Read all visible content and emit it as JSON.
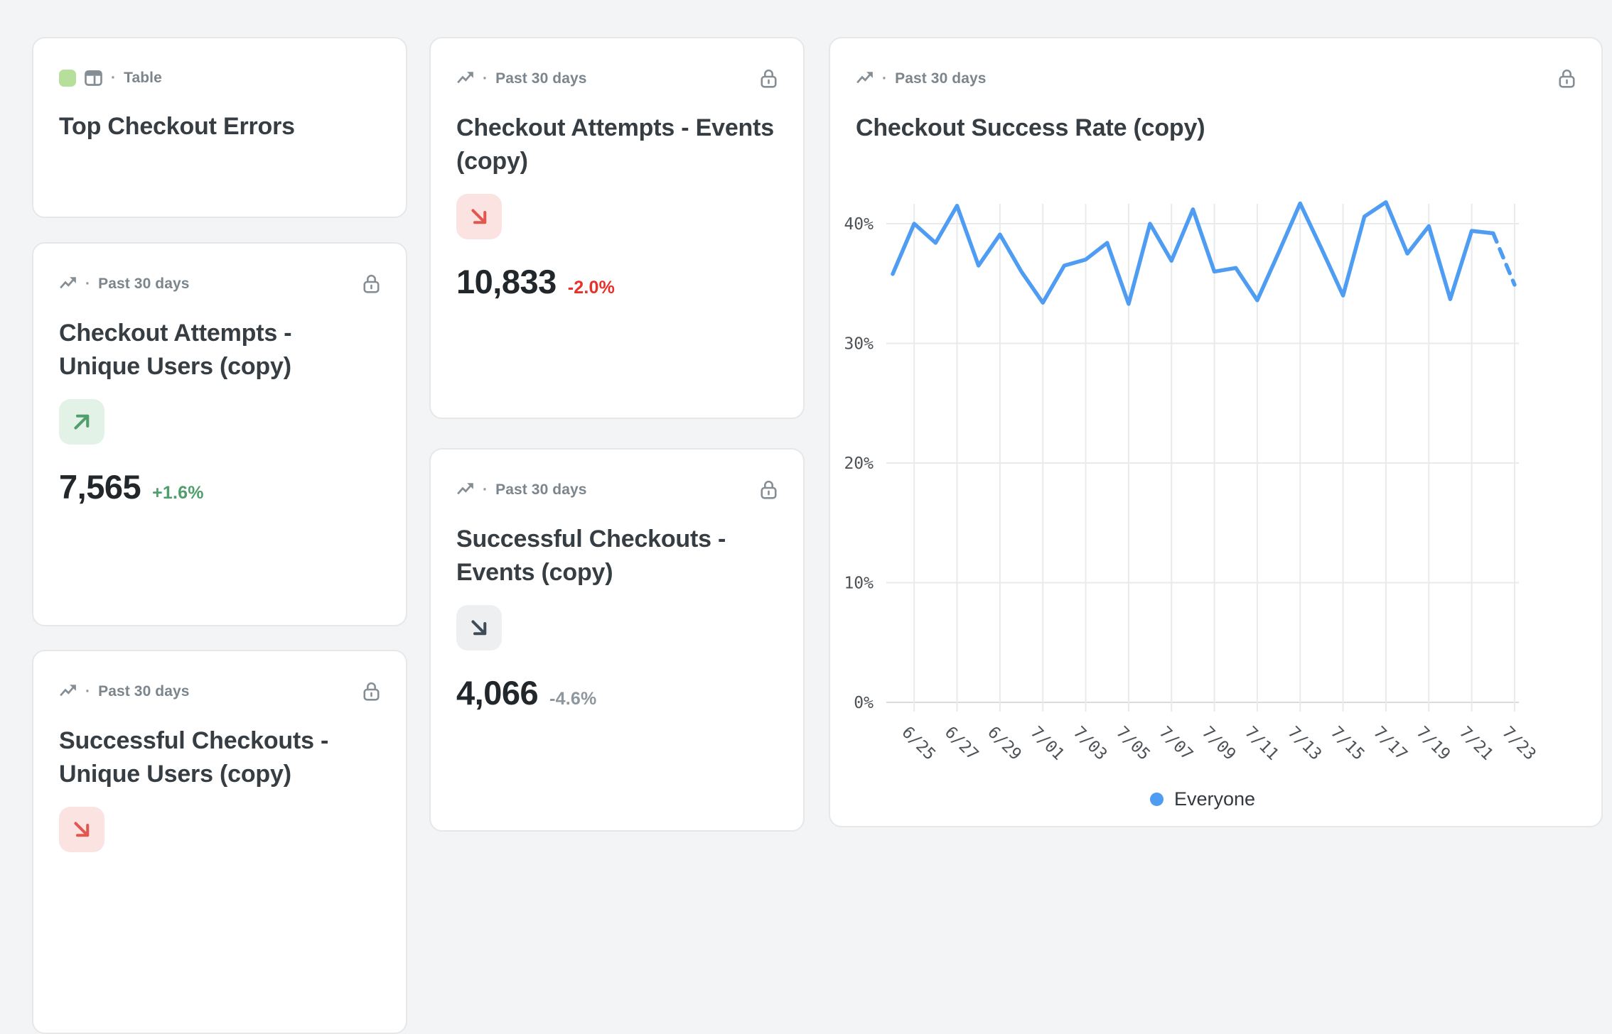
{
  "ui": {
    "separator": "·"
  },
  "colors": {
    "page_bg": "#f3f4f5",
    "card_border": "#e5e7e9",
    "muted_text": "#7c858c",
    "title_text": "#363d43",
    "value_text": "#22272b",
    "green": "#4f9e6b",
    "green_bg": "#e3f2e7",
    "green_chip": "#b6df9b",
    "red": "#e8312a",
    "red_arrow": "#e25650",
    "red_bg": "#fbe3e2",
    "gray_arrow": "#3e4c59",
    "gray_bg": "#edeff1",
    "line_blue": "#4f9df3",
    "gridline": "#e8eaec",
    "axis_line": "#d9dbdd"
  },
  "cards": {
    "top_errors": {
      "type_label": "Table",
      "title": "Top Checkout Errors"
    },
    "attempts_users": {
      "period": "Past 30 days",
      "title": "Checkout Attempts - Unique Users (copy)",
      "value": "7,565",
      "delta": "+1.6%"
    },
    "success_users": {
      "period": "Past 30 days",
      "title": "Successful Checkouts - Unique Users (copy)"
    },
    "attempts_events": {
      "period": "Past 30 days",
      "title": "Checkout Attempts - Events (copy)",
      "value": "10,833",
      "delta": "-2.0%"
    },
    "success_events": {
      "period": "Past 30 days",
      "title": "Successful Checkouts - Events (copy)",
      "value": "4,066",
      "delta": "-4.6%"
    },
    "chart": {
      "period": "Past 30 days",
      "title": "Checkout Success Rate (copy)",
      "legend": "Everyone"
    }
  },
  "chart_data": {
    "type": "line",
    "title": "Checkout Success Rate (copy)",
    "xlabel": "",
    "ylabel": "",
    "ylim": [
      0,
      44
    ],
    "grid": true,
    "legend_position": "bottom",
    "y_ticks": [
      "0%",
      "10%",
      "20%",
      "30%",
      "40%"
    ],
    "x_tick_labels": [
      "6/25",
      "6/27",
      "6/29",
      "7/01",
      "7/03",
      "7/05",
      "7/07",
      "7/09",
      "7/11",
      "7/13",
      "7/15",
      "7/17",
      "7/19",
      "7/21",
      "7/23"
    ],
    "x": [
      "6/24",
      "6/25",
      "6/26",
      "6/27",
      "6/28",
      "6/29",
      "6/30",
      "7/01",
      "7/02",
      "7/03",
      "7/04",
      "7/05",
      "7/06",
      "7/07",
      "7/08",
      "7/09",
      "7/10",
      "7/11",
      "7/12",
      "7/13",
      "7/14",
      "7/15",
      "7/16",
      "7/17",
      "7/18",
      "7/19",
      "7/20",
      "7/21",
      "7/22",
      "7/23"
    ],
    "series": [
      {
        "name": "Everyone",
        "color": "#4f9df3",
        "values": [
          35.8,
          40.0,
          38.4,
          41.5,
          36.5,
          39.1,
          36.0,
          33.4,
          36.5,
          37.0,
          38.4,
          33.3,
          40.0,
          36.9,
          41.2,
          36.0,
          36.3,
          33.6,
          37.6,
          41.7,
          37.9,
          34.0,
          40.6,
          41.8,
          37.5,
          39.8,
          33.7,
          39.4,
          39.2,
          34.9
        ],
        "last_segment_style": "dashed"
      }
    ]
  }
}
